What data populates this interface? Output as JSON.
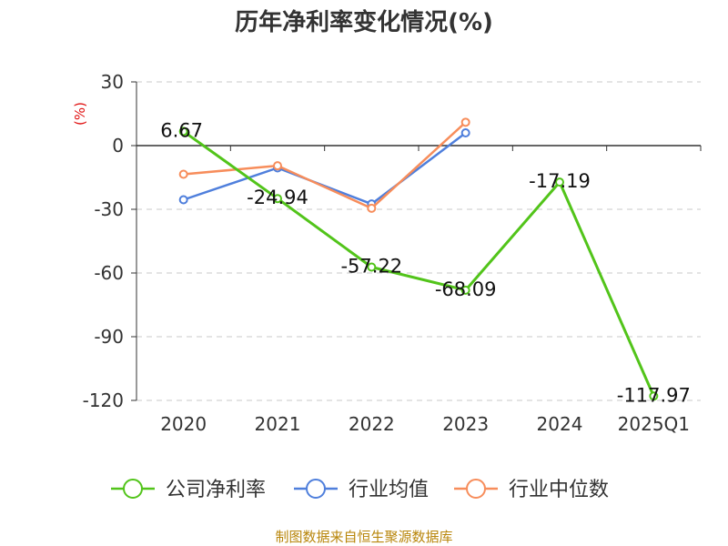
{
  "source_note": "制图数据来自恒生聚源数据库",
  "colors": {
    "公司净利率": "#52c41a",
    "行业均值": "#4f7fdc",
    "行业中位数": "#f78d5b"
  },
  "chart_data": {
    "type": "line",
    "title": "历年净利率变化情况(%)",
    "ylabel": "(%)",
    "xlabel": "",
    "categories": [
      "2020",
      "2021",
      "2022",
      "2023",
      "2024",
      "2025Q1"
    ],
    "ylim": [
      -120,
      30
    ],
    "yticks": [
      30,
      0,
      -30,
      -60,
      -90,
      -120
    ],
    "grid": true,
    "legend_position": "bottom",
    "series": [
      {
        "name": "公司净利率",
        "values": [
          6.67,
          -24.94,
          -57.22,
          -68.09,
          -17.19,
          -117.97
        ],
        "labels": [
          "6.67",
          "-24.94",
          "-57.22",
          "-68.09",
          "-17.19",
          "-117.97"
        ]
      },
      {
        "name": "行业均值",
        "values": [
          -25.5,
          -10.5,
          -27.5,
          6.0,
          null,
          null
        ]
      },
      {
        "name": "行业中位数",
        "values": [
          -13.5,
          -9.5,
          -29.5,
          11.0,
          null,
          null
        ]
      }
    ]
  }
}
